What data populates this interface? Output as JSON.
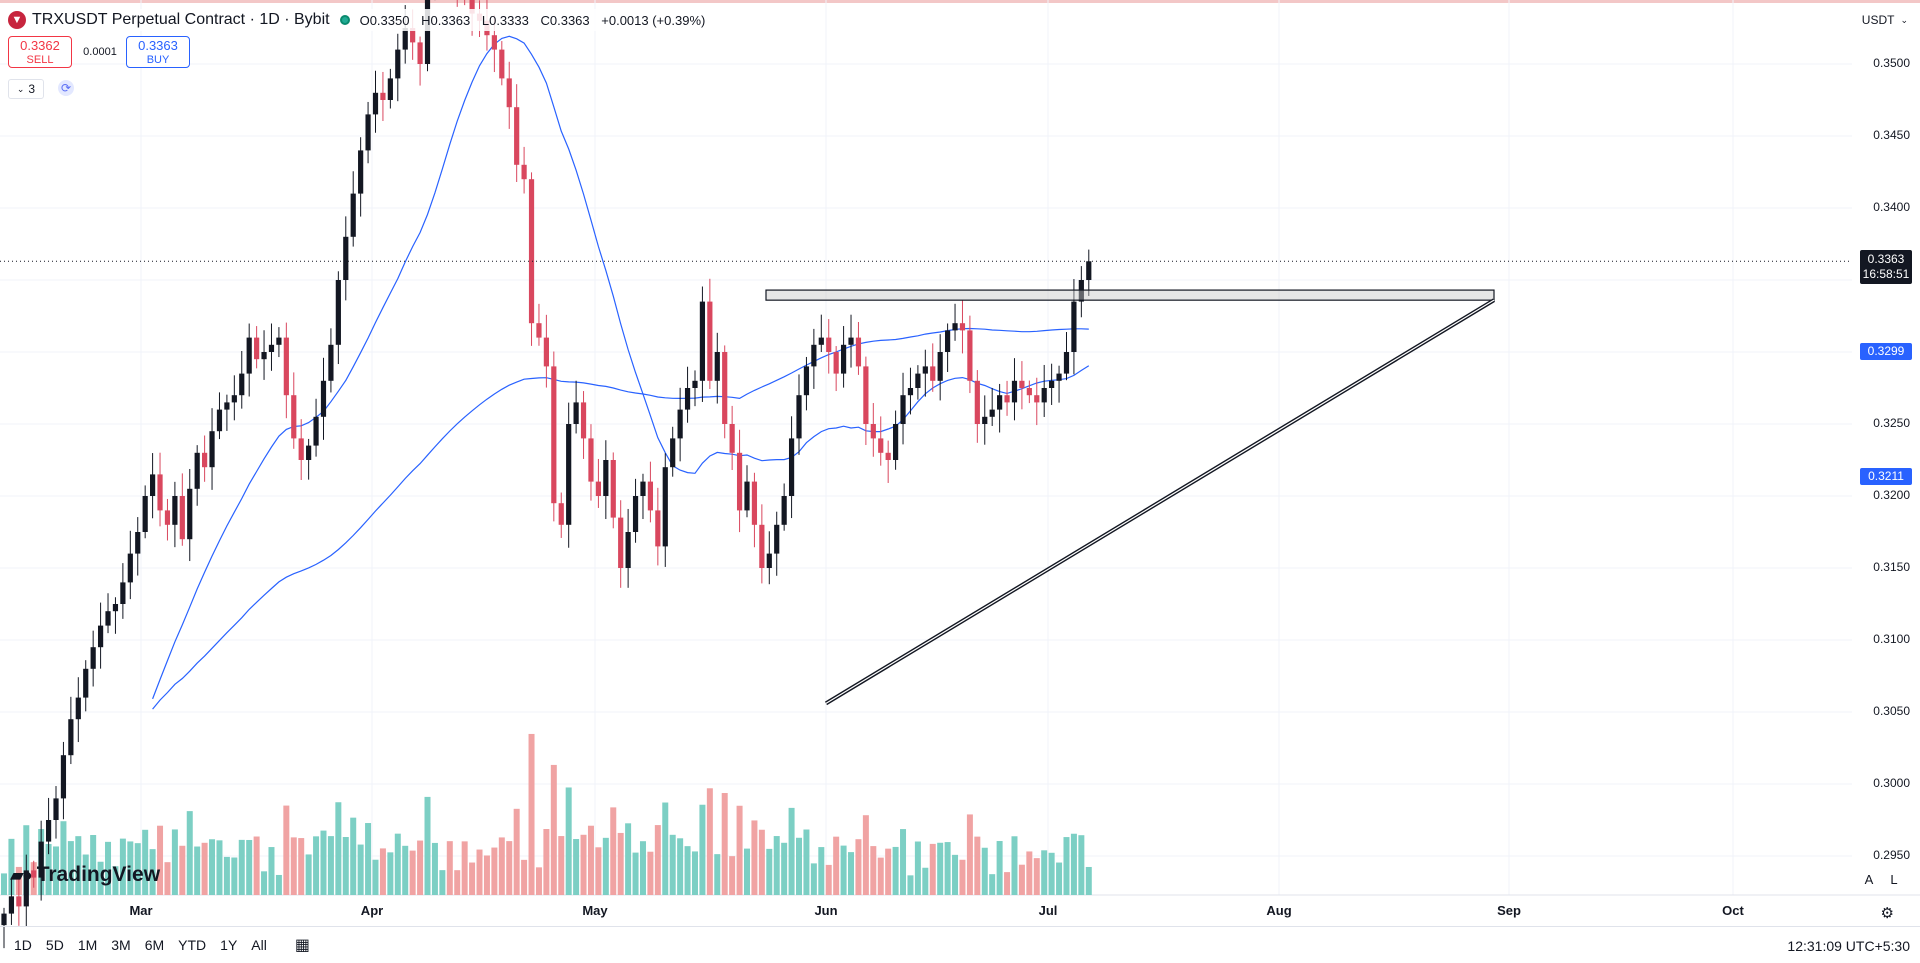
{
  "symbol": {
    "icon": "tron-coin-icon",
    "title": "TRXUSDT Perpetual Contract · 1D · Bybit",
    "ohlc": {
      "open": "O0.3350",
      "high": "H0.3363",
      "low": "L0.3333",
      "close": "C0.3363",
      "change": "+0.0013 (+0.39%)"
    }
  },
  "trade": {
    "sell_price": "0.3362",
    "sell_label": "SELL",
    "spread": "0.0001",
    "buy_price": "0.3363",
    "buy_label": "BUY"
  },
  "indicators_count": "3",
  "currency": "USDT",
  "price_axis": {
    "labels": [
      "0.3500",
      "0.3450",
      "0.3400",
      "0.3250",
      "0.3200",
      "0.3150",
      "0.3100",
      "0.3050",
      "0.3000",
      "0.2950"
    ],
    "last_price": "0.3363",
    "countdown": "16:58:51",
    "ma_fast_value": "0.3299",
    "ma_slow_value": "0.3211"
  },
  "time_axis": {
    "months": [
      "Mar",
      "Apr",
      "May",
      "Jun",
      "Jul",
      "Aug",
      "Sep",
      "Oct"
    ]
  },
  "scale_buttons": {
    "auto": "A",
    "log": "L"
  },
  "logo_text": "TradingView",
  "timeframes": [
    "1D",
    "5D",
    "1M",
    "3M",
    "6M",
    "YTD",
    "1Y",
    "All"
  ],
  "clock": "12:31:09 UTC+5:30",
  "colors": {
    "up": "#131722",
    "down": "#d9475e",
    "vol_up": "#7ccfc4",
    "vol_down": "#f0a3a3",
    "ma": "#2962ff",
    "accent": "#2962ff"
  },
  "chart_data": {
    "type": "candlestick",
    "interval": "1D",
    "ylim": [
      0.292,
      0.354
    ],
    "closes": [
      0.291,
      0.2922,
      0.2915,
      0.294,
      0.2935,
      0.296,
      0.2975,
      0.299,
      0.302,
      0.3045,
      0.306,
      0.308,
      0.3095,
      0.311,
      0.312,
      0.3125,
      0.314,
      0.316,
      0.3175,
      0.32,
      0.3215,
      0.319,
      0.318,
      0.32,
      0.317,
      0.3205,
      0.323,
      0.322,
      0.3245,
      0.326,
      0.3265,
      0.327,
      0.3285,
      0.331,
      0.3295,
      0.33,
      0.3305,
      0.331,
      0.327,
      0.324,
      0.3225,
      0.3235,
      0.3255,
      0.328,
      0.3305,
      0.335,
      0.338,
      0.341,
      0.344,
      0.3465,
      0.348,
      0.3475,
      0.349,
      0.351,
      0.3525,
      0.3515,
      0.35,
      0.356,
      0.357,
      0.3575,
      0.3565,
      0.3555,
      0.3545,
      0.3535,
      0.353,
      0.352,
      0.351,
      0.349,
      0.347,
      0.343,
      0.342,
      0.332,
      0.331,
      0.329,
      0.3195,
      0.318,
      0.325,
      0.3265,
      0.324,
      0.321,
      0.32,
      0.3225,
      0.3185,
      0.315,
      0.3175,
      0.32,
      0.321,
      0.319,
      0.3165,
      0.322,
      0.324,
      0.326,
      0.3275,
      0.328,
      0.3335,
      0.328,
      0.33,
      0.325,
      0.323,
      0.319,
      0.321,
      0.318,
      0.315,
      0.316,
      0.318,
      0.32,
      0.324,
      0.327,
      0.329,
      0.3305,
      0.331,
      0.33,
      0.3285,
      0.3305,
      0.331,
      0.329,
      0.325,
      0.324,
      0.323,
      0.3225,
      0.325,
      0.327,
      0.3275,
      0.3285,
      0.329,
      0.328,
      0.33,
      0.3315,
      0.332,
      0.3315,
      0.328,
      0.325,
      0.3255,
      0.326,
      0.327,
      0.3265,
      0.328,
      0.3275,
      0.327,
      0.3265,
      0.3275,
      0.328,
      0.3285,
      0.33,
      0.3335,
      0.335,
      0.3363
    ],
    "volume_scale": "relative",
    "annotations": [
      "resistance zone at ~0.3335",
      "ascending trendline from ~0.3058 to ~0.3327"
    ]
  }
}
